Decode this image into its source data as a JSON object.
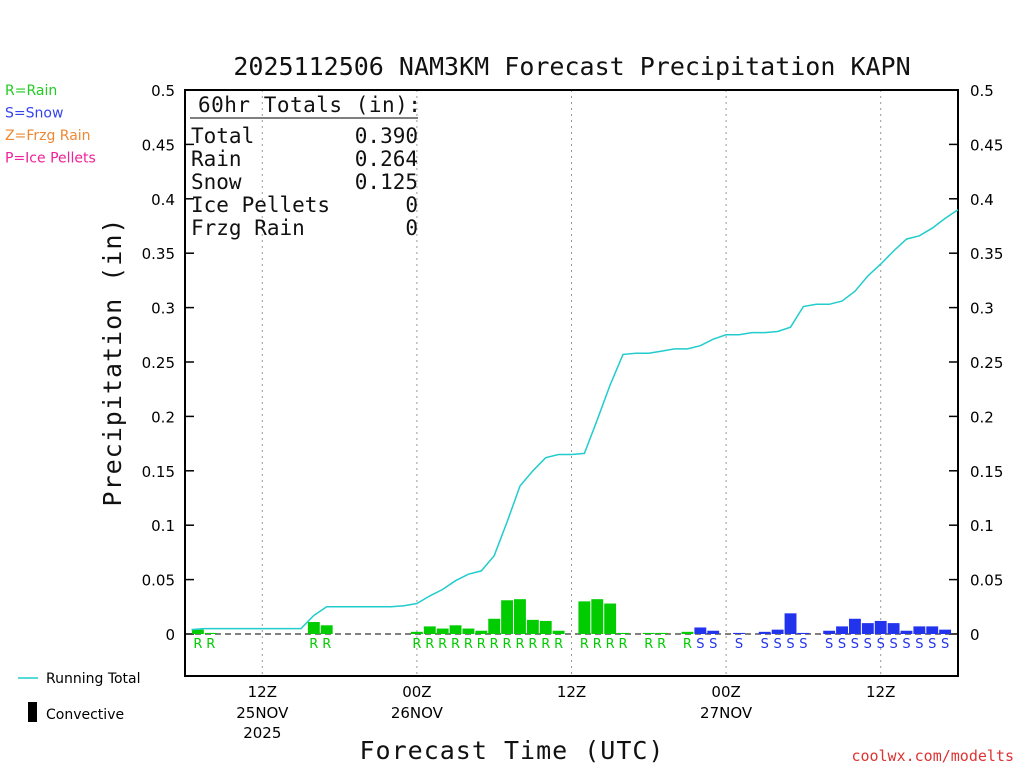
{
  "chart_data": {
    "type": "bar",
    "title": "2025112506 NAM3KM Forecast Precipitation KAPN",
    "xlabel": "Forecast Time (UTC)",
    "ylabel": "Precipitation (in)",
    "ylim": [
      0,
      0.5
    ],
    "xlim": [
      6,
      66
    ],
    "yticks": [
      "0",
      "0.05",
      "0.1",
      "0.15",
      "0.2",
      "0.25",
      "0.3",
      "0.35",
      "0.4",
      "0.45",
      "0.5"
    ],
    "xticks": [
      {
        "hour": 12,
        "label": "12Z",
        "sub1": "25NOV",
        "sub2": "2025"
      },
      {
        "hour": 24,
        "label": "00Z",
        "sub1": "26NOV",
        "sub2": ""
      },
      {
        "hour": 36,
        "label": "12Z",
        "sub1": "",
        "sub2": ""
      },
      {
        "hour": 48,
        "label": "00Z",
        "sub1": "27NOV",
        "sub2": ""
      },
      {
        "hour": 60,
        "label": "12Z",
        "sub1": "",
        "sub2": ""
      }
    ],
    "type_legend": [
      {
        "label": "R=Rain",
        "color": "#22cc22"
      },
      {
        "label": "S=Snow",
        "color": "#3344ee"
      },
      {
        "label": "Z=Frzg Rain",
        "color": "#ee8833"
      },
      {
        "label": "P=Ice Pellets",
        "color": "#ee2299"
      }
    ],
    "bottom_legend": {
      "running_total": "Running Total",
      "convective": "Convective"
    },
    "totals": {
      "header": "60hr Totals (in):",
      "rows": [
        {
          "label": "Total",
          "value": "0.390"
        },
        {
          "label": "Rain",
          "value": "0.264"
        },
        {
          "label": "Snow",
          "value": "0.125"
        },
        {
          "label": "Ice Pellets",
          "value": "0"
        },
        {
          "label": "Frzg Rain",
          "value": "0"
        }
      ]
    },
    "colors": {
      "rain": "#00cc00",
      "snow": "#2233ee",
      "line": "#22cccc",
      "grid": "#999999"
    },
    "series": [
      {
        "name": "Hourly Precipitation",
        "bars": [
          {
            "t": 7,
            "v": 0.004,
            "p": "R"
          },
          {
            "t": 8,
            "v": 0.001,
            "p": "R"
          },
          {
            "t": 16,
            "v": 0.011,
            "p": "R"
          },
          {
            "t": 17,
            "v": 0.008,
            "p": "R"
          },
          {
            "t": 24,
            "v": 0.002,
            "p": "R"
          },
          {
            "t": 25,
            "v": 0.007,
            "p": "R"
          },
          {
            "t": 26,
            "v": 0.005,
            "p": "R"
          },
          {
            "t": 27,
            "v": 0.008,
            "p": "R"
          },
          {
            "t": 28,
            "v": 0.005,
            "p": "R"
          },
          {
            "t": 29,
            "v": 0.003,
            "p": "R"
          },
          {
            "t": 30,
            "v": 0.014,
            "p": "R"
          },
          {
            "t": 31,
            "v": 0.031,
            "p": "R"
          },
          {
            "t": 32,
            "v": 0.032,
            "p": "R"
          },
          {
            "t": 33,
            "v": 0.013,
            "p": "R"
          },
          {
            "t": 34,
            "v": 0.012,
            "p": "R"
          },
          {
            "t": 35,
            "v": 0.003,
            "p": "R"
          },
          {
            "t": 37,
            "v": 0.03,
            "p": "R"
          },
          {
            "t": 38,
            "v": 0.032,
            "p": "R"
          },
          {
            "t": 39,
            "v": 0.028,
            "p": "R"
          },
          {
            "t": 40,
            "v": 0.001,
            "p": "R"
          },
          {
            "t": 42,
            "v": 0.001,
            "p": "R"
          },
          {
            "t": 43,
            "v": 0.001,
            "p": "R"
          },
          {
            "t": 45,
            "v": 0.002,
            "p": "R"
          },
          {
            "t": 46,
            "v": 0.006,
            "p": "S"
          },
          {
            "t": 47,
            "v": 0.003,
            "p": "S"
          },
          {
            "t": 49,
            "v": 0.001,
            "p": "S"
          },
          {
            "t": 51,
            "v": 0.002,
            "p": "S"
          },
          {
            "t": 52,
            "v": 0.004,
            "p": "S"
          },
          {
            "t": 53,
            "v": 0.019,
            "p": "S"
          },
          {
            "t": 54,
            "v": 0.001,
            "p": "S"
          },
          {
            "t": 56,
            "v": 0.003,
            "p": "S"
          },
          {
            "t": 57,
            "v": 0.007,
            "p": "S"
          },
          {
            "t": 58,
            "v": 0.014,
            "p": "S"
          },
          {
            "t": 59,
            "v": 0.01,
            "p": "S"
          },
          {
            "t": 60,
            "v": 0.012,
            "p": "S"
          },
          {
            "t": 61,
            "v": 0.01,
            "p": "S"
          },
          {
            "t": 62,
            "v": 0.003,
            "p": "S"
          },
          {
            "t": 63,
            "v": 0.007,
            "p": "S"
          },
          {
            "t": 64,
            "v": 0.007,
            "p": "S"
          },
          {
            "t": 65,
            "v": 0.004,
            "p": "S"
          }
        ]
      },
      {
        "name": "Running Total",
        "x": [
          6.5,
          7.5,
          8.5,
          15,
          16,
          17,
          18,
          19,
          20,
          21,
          22,
          23,
          24,
          25,
          26,
          27,
          28,
          29,
          30,
          31,
          32,
          33,
          34,
          35,
          36,
          37,
          38,
          39,
          40,
          41,
          42,
          43,
          44,
          45,
          46,
          47,
          48,
          49,
          50,
          51,
          52,
          53,
          54,
          55,
          56,
          57,
          58,
          59,
          60,
          61,
          62,
          63,
          64,
          65,
          66
        ],
        "y": [
          0.004,
          0.005,
          0.005,
          0.005,
          0.017,
          0.025,
          0.025,
          0.025,
          0.025,
          0.025,
          0.025,
          0.026,
          0.028,
          0.035,
          0.041,
          0.049,
          0.055,
          0.058,
          0.072,
          0.103,
          0.136,
          0.15,
          0.162,
          0.165,
          0.165,
          0.166,
          0.197,
          0.229,
          0.257,
          0.258,
          0.258,
          0.26,
          0.262,
          0.262,
          0.265,
          0.271,
          0.275,
          0.275,
          0.277,
          0.277,
          0.278,
          0.282,
          0.301,
          0.303,
          0.303,
          0.306,
          0.315,
          0.329,
          0.34,
          0.352,
          0.363,
          0.366,
          0.373,
          0.382,
          0.39
        ]
      }
    ]
  },
  "credit": "coolwx.com/modelts"
}
